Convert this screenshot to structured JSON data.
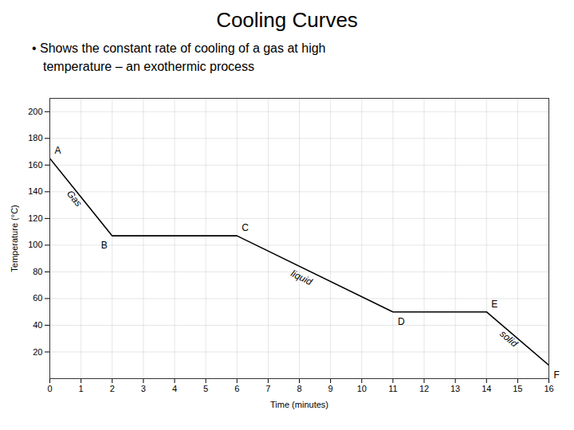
{
  "chart_data": {
    "type": "line",
    "title": "Cooling Curves",
    "subtitle": [
      "• Shows the constant rate of cooling of a gas at high",
      "temperature – an exothermic process"
    ],
    "xlabel": "Time (minutes)",
    "ylabel": "Temperature (°C)",
    "x": [
      0,
      2,
      6,
      11,
      14,
      16
    ],
    "values": [
      165,
      107,
      107,
      50,
      50,
      10
    ],
    "point_labels": [
      "A",
      "B",
      "C",
      "D",
      "E",
      "F"
    ],
    "color": "#000000",
    "xlim": [
      0,
      16
    ],
    "xticks": [
      0,
      1,
      2,
      3,
      4,
      5,
      6,
      7,
      8,
      9,
      10,
      11,
      12,
      13,
      14,
      15,
      16
    ],
    "ylim": [
      0,
      210
    ],
    "yticks": [
      20,
      40,
      60,
      80,
      100,
      120,
      140,
      160,
      180,
      200
    ],
    "grid": true,
    "annotations": [
      {
        "text": "Gas",
        "x": 0.7,
        "y": 143
      },
      {
        "text": "liquid",
        "x": 7.8,
        "y": 83
      },
      {
        "text": "solid",
        "x": 14.55,
        "y": 38
      }
    ]
  }
}
